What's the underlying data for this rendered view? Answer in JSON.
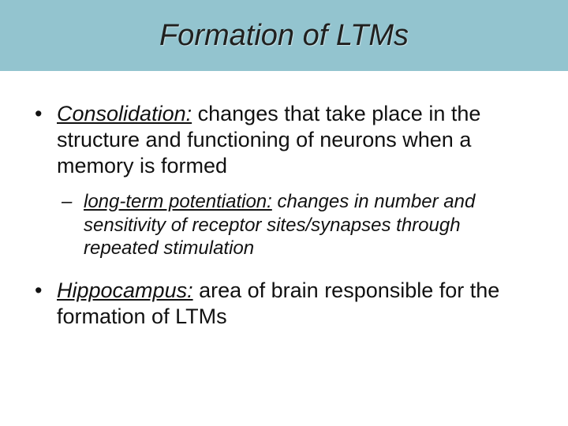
{
  "title": "Formation of LTMs",
  "colors": {
    "title_band_bg": "#93c4cf",
    "title_text": "#20201f",
    "body_text": "#111111",
    "page_bg": "#ffffff"
  },
  "typography": {
    "title_fontsize": 38,
    "title_style": "italic",
    "bullet1_fontsize": 27,
    "bullet2_fontsize": 24,
    "bullet2_style": "italic",
    "font_family": "Arial"
  },
  "bullets": [
    {
      "level": 1,
      "marker": "•",
      "term": "Consolidation:",
      "rest": " changes that take place in the structure and functioning of neurons when a memory is formed"
    },
    {
      "level": 2,
      "marker": "–",
      "term": "long-term potentiation:",
      "rest": " changes in number and sensitivity of receptor sites/synapses through repeated stimulation"
    },
    {
      "level": 1,
      "marker": "•",
      "term": "Hippocampus:",
      "rest": " area of brain responsible for the formation of LTMs"
    }
  ]
}
